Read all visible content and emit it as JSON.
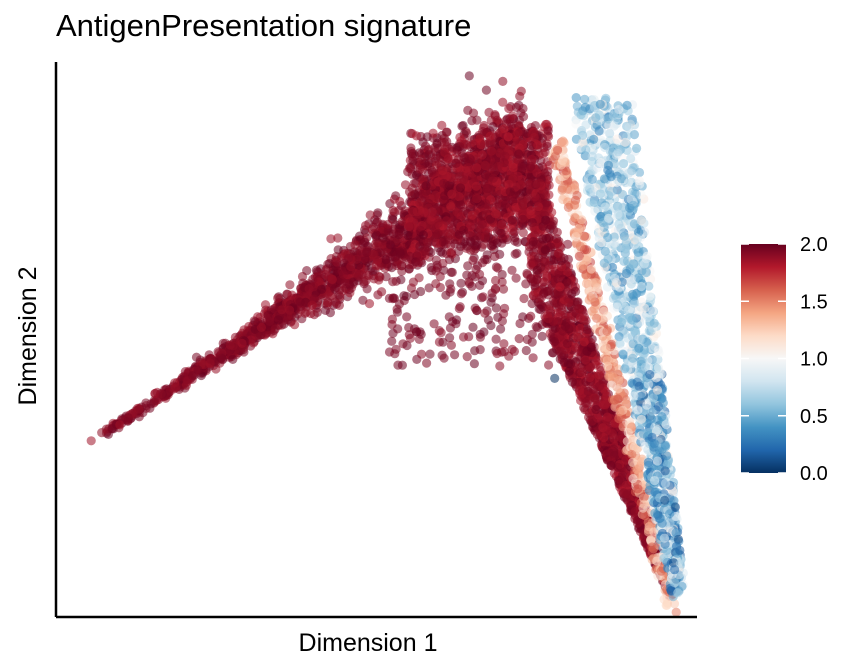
{
  "chart_data": {
    "type": "scatter",
    "title": "AntigenPresentation signature",
    "xlabel": "Dimension 1",
    "ylabel": "Dimension 2",
    "x_ticks_shown": false,
    "y_ticks_shown": false,
    "grid": false,
    "color_variable": {
      "range": [
        0.0,
        2.0
      ],
      "ticks": [
        "0.0",
        "0.5",
        "1.0",
        "1.5",
        "2.0"
      ],
      "colormap": [
        "#053061",
        "#2166ac",
        "#4393c3",
        "#92c5de",
        "#d1e5f0",
        "#f7f7f7",
        "#fddbc7",
        "#f4a582",
        "#d6604d",
        "#b2182b",
        "#67001f"
      ],
      "legend_position": "right"
    },
    "point_color_default": "#67001f",
    "point_opacity": 0.55,
    "structure": {
      "left_branch": {
        "from": [
          0.05,
          0.31
        ],
        "to": [
          0.73,
          0.88
        ],
        "value_range": [
          1.85,
          2.0
        ]
      },
      "right_edge_upper": {
        "from": [
          0.73,
          0.88
        ],
        "to": [
          0.9,
          0.88
        ],
        "value_range": [
          0.3,
          1.2
        ]
      },
      "lower_branch": {
        "from": [
          0.8,
          0.75
        ],
        "to": [
          0.98,
          0.02
        ],
        "value_range": [
          0.2,
          2.0
        ]
      }
    }
  }
}
